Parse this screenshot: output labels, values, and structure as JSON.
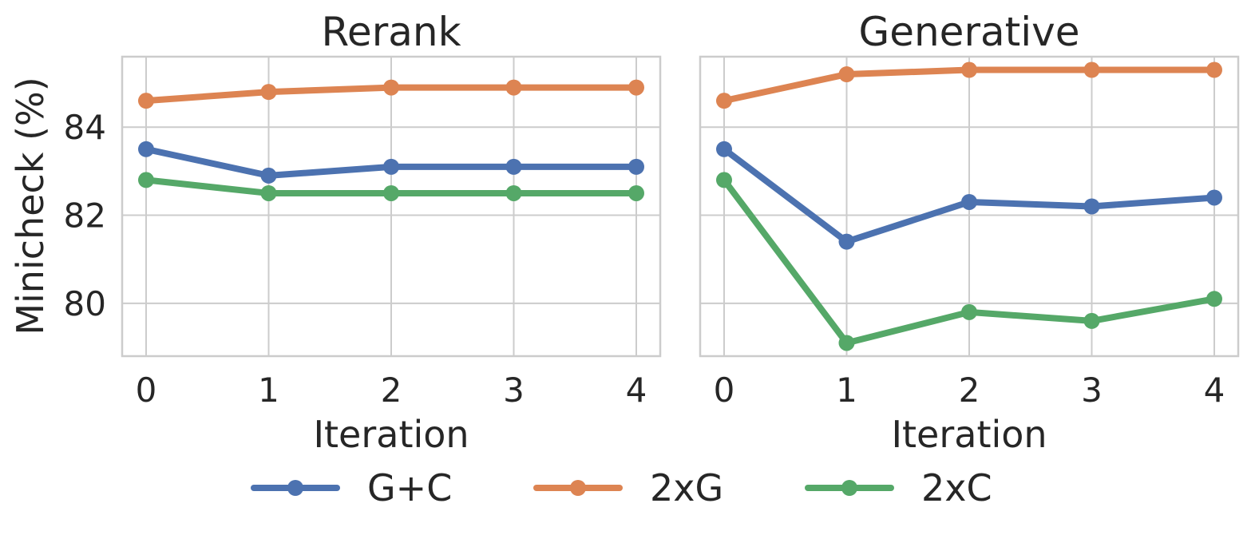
{
  "chart_data": {
    "type": "line",
    "ylabel": "Minicheck (%)",
    "yticks": [
      80,
      82,
      84
    ],
    "ylim": [
      78.8,
      85.6
    ],
    "legend": {
      "position": "bottom-center",
      "entries": [
        "G+C",
        "2xG",
        "2xC"
      ]
    },
    "colors": {
      "G+C": "#4c72b0",
      "2xG": "#dd8452",
      "2xC": "#55a868"
    },
    "panels": [
      {
        "title": "Rerank",
        "xlabel": "Iteration",
        "x": [
          0,
          1,
          2,
          3,
          4
        ],
        "series": [
          {
            "name": "G+C",
            "values": [
              83.5,
              82.9,
              83.1,
              83.1,
              83.1
            ]
          },
          {
            "name": "2xG",
            "values": [
              84.6,
              84.8,
              84.9,
              84.9,
              84.9
            ]
          },
          {
            "name": "2xC",
            "values": [
              82.8,
              82.5,
              82.5,
              82.5,
              82.5
            ]
          }
        ]
      },
      {
        "title": "Generative",
        "xlabel": "Iteration",
        "x": [
          0,
          1,
          2,
          3,
          4
        ],
        "series": [
          {
            "name": "G+C",
            "values": [
              83.5,
              81.4,
              82.3,
              82.2,
              82.4
            ]
          },
          {
            "name": "2xG",
            "values": [
              84.6,
              85.2,
              85.3,
              85.3,
              85.3
            ]
          },
          {
            "name": "2xC",
            "values": [
              82.8,
              79.1,
              79.8,
              79.6,
              80.1
            ]
          }
        ]
      }
    ]
  }
}
